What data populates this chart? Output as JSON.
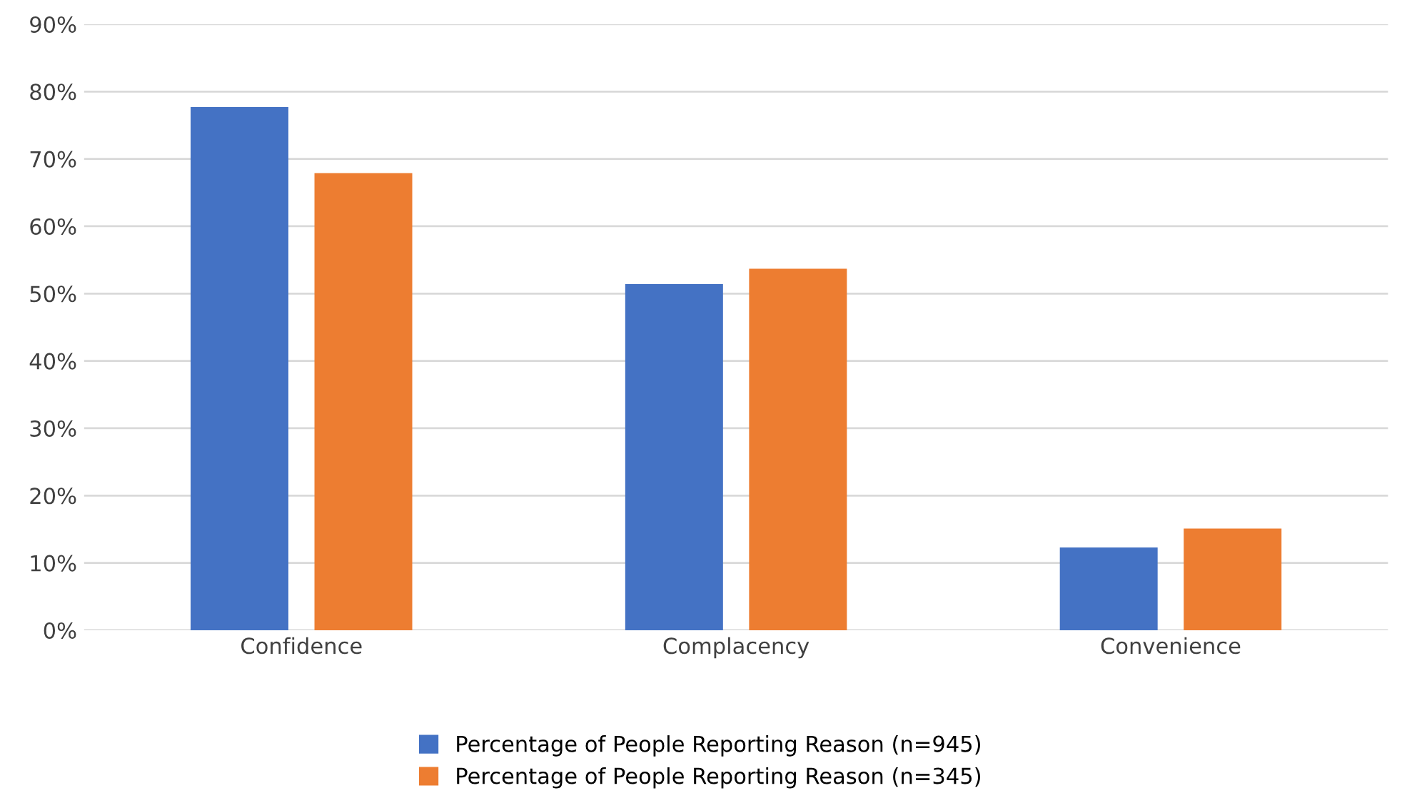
{
  "chart_data": {
    "type": "bar",
    "categories": [
      "Confidence",
      "Complacency",
      "Convenience"
    ],
    "series": [
      {
        "name": "Percentage of People Reporting Reason (n=945)",
        "color": "#4472c4",
        "values": [
          77.7,
          51.4,
          12.3
        ]
      },
      {
        "name": "Percentage of People Reporting Reason (n=345)",
        "color": "#ed7d31",
        "values": [
          67.9,
          53.7,
          15.1
        ]
      }
    ],
    "ylim": [
      0,
      90
    ],
    "yticks": [
      {
        "value": 0,
        "label": "0%"
      },
      {
        "value": 10,
        "label": "10%"
      },
      {
        "value": 20,
        "label": "20%"
      },
      {
        "value": 30,
        "label": "30%"
      },
      {
        "value": 40,
        "label": "40%"
      },
      {
        "value": 50,
        "label": "50%"
      },
      {
        "value": 60,
        "label": "60%"
      },
      {
        "value": 70,
        "label": "70%"
      },
      {
        "value": 80,
        "label": "80%"
      },
      {
        "value": 90,
        "label": "90%"
      }
    ],
    "grid": "y",
    "legend": "bottom"
  }
}
